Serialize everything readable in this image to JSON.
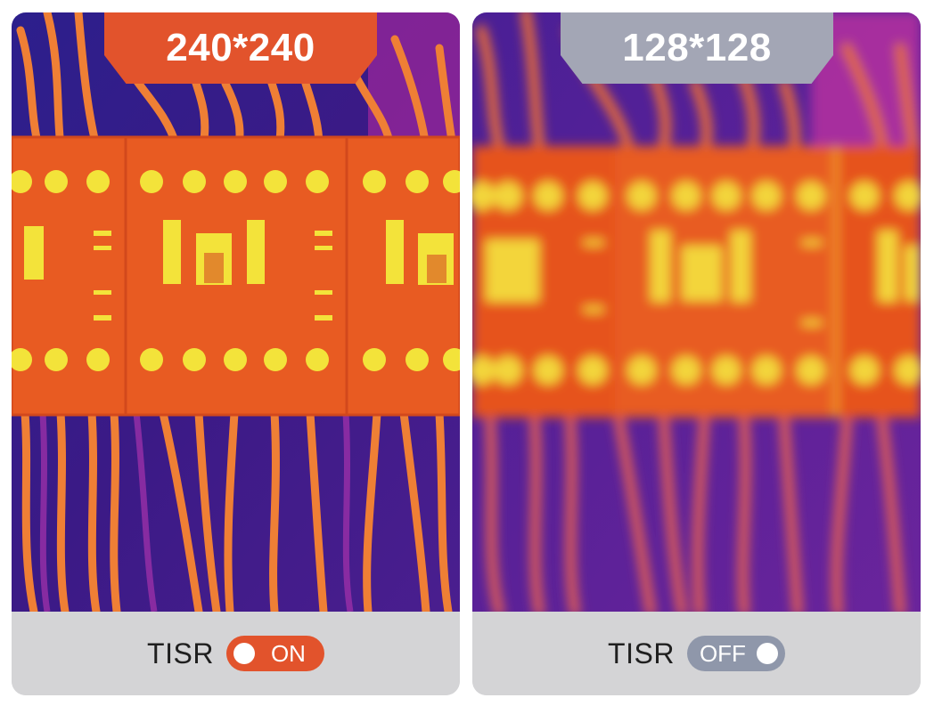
{
  "panels": {
    "left": {
      "resolution": "240*240",
      "tisr_label": "TISR",
      "toggle_state": "ON",
      "toggle_on": true,
      "accent": "#e2532c"
    },
    "right": {
      "resolution": "128*128",
      "tisr_label": "TISR",
      "toggle_state": "OFF",
      "toggle_on": false,
      "accent": "#a3a6b5"
    }
  },
  "colors": {
    "background_cold": "#3a1d8a",
    "wire_hot": "#f0892d",
    "contactor_body": "#e6531f",
    "hotspot": "#f3e33a",
    "footer": "#d4d4d6"
  }
}
